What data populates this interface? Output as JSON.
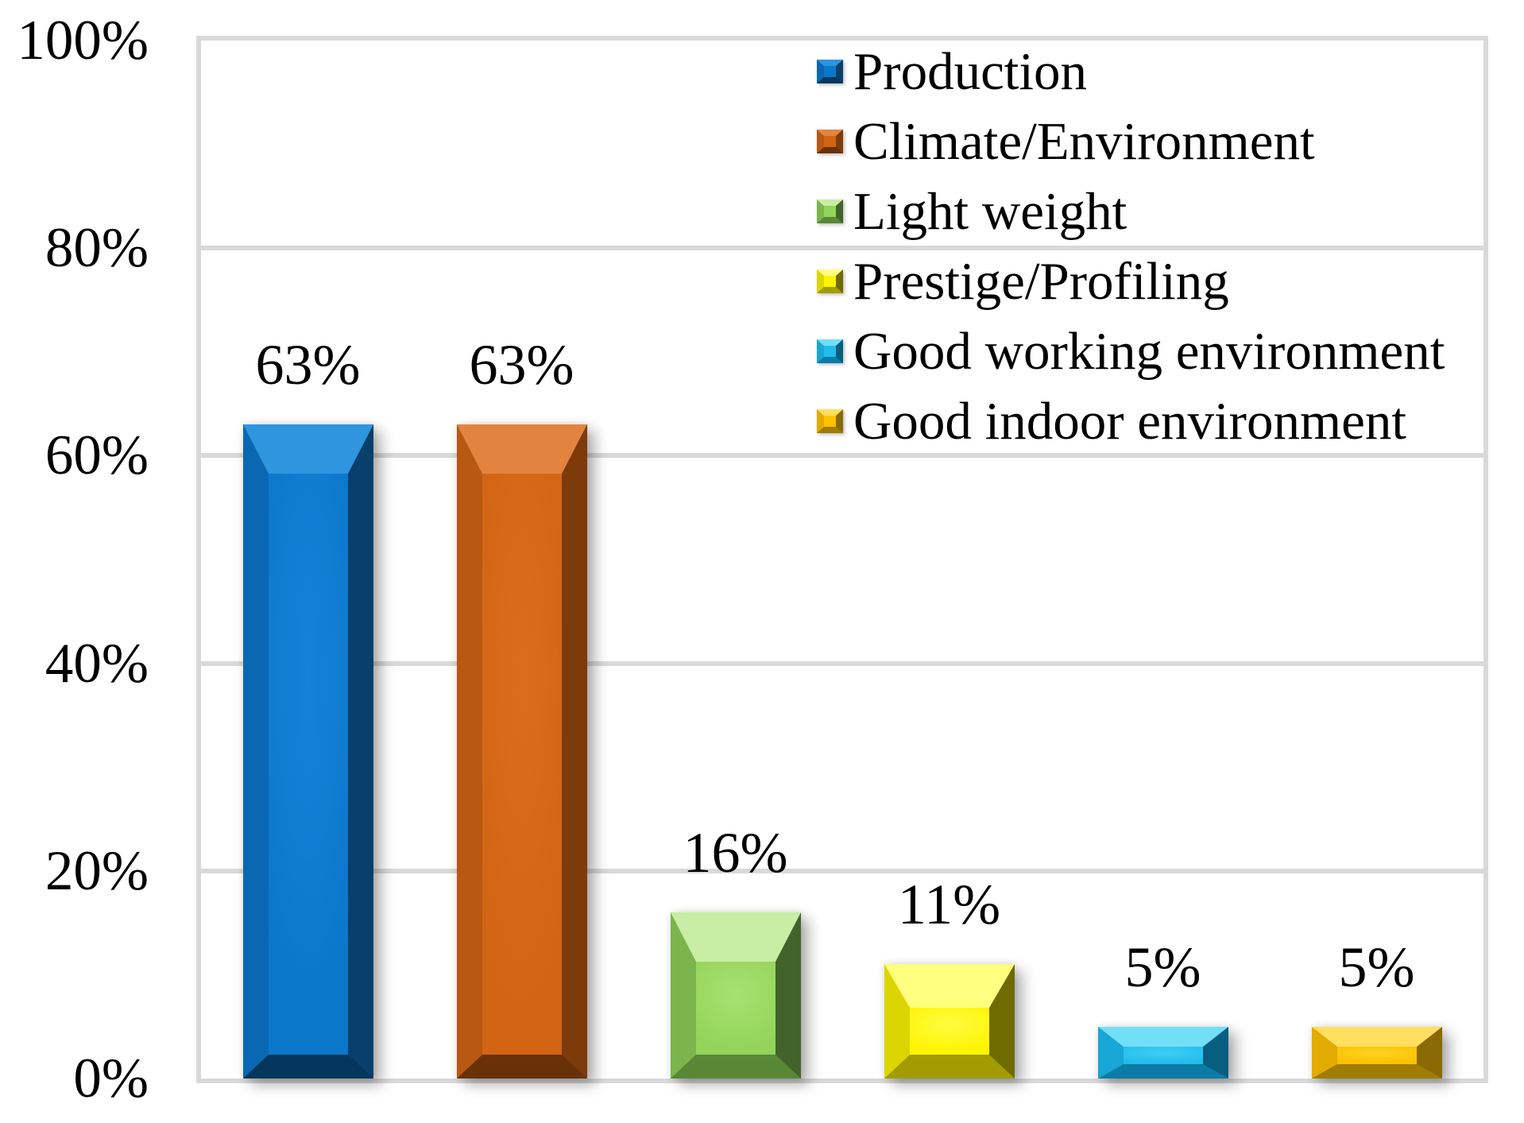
{
  "chart_data": {
    "type": "bar",
    "title": "",
    "xlabel": "",
    "ylabel": "",
    "categories": [
      "Production",
      "Climate/Environment",
      "Light weight",
      "Prestige/Profiling",
      "Good working environment",
      "Good indoor environment"
    ],
    "values": [
      63,
      63,
      16,
      11,
      5,
      5
    ],
    "data_labels": [
      "63%",
      "63%",
      "16%",
      "11%",
      "5%",
      "5%"
    ],
    "ylim": [
      0,
      100
    ],
    "yticks": [
      0,
      20,
      40,
      60,
      80,
      100
    ],
    "ytick_labels": [
      "0%",
      "20%",
      "40%",
      "60%",
      "80%",
      "100%"
    ],
    "grid": true,
    "legend_position": "top-right-inside",
    "bar_style": "3d-bevel",
    "series": [
      {
        "name": "Production",
        "value": 63,
        "label": "63%",
        "colors": {
          "face": "#0b77cb",
          "faceLight": "#1583d8",
          "bevelTop": "#2e95de",
          "bevelLeft": "#0a68b2",
          "bevelRight": "#083f6b",
          "bevelBottom": "#05365d"
        }
      },
      {
        "name": "Climate/Environment",
        "value": 63,
        "label": "63%",
        "colors": {
          "face": "#d26414",
          "faceLight": "#da6d1d",
          "bevelTop": "#e28440",
          "bevelLeft": "#b85812",
          "bevelRight": "#7d3b0b",
          "bevelBottom": "#693108"
        }
      },
      {
        "name": "Light weight",
        "value": 16,
        "label": "16%",
        "colors": {
          "face": "#94d45a",
          "faceLight": "#a6e170",
          "bevelTop": "#c8eda4",
          "bevelLeft": "#7bb54c",
          "bevelRight": "#42632a",
          "bevelBottom": "#588836"
        }
      },
      {
        "name": "Prestige/Profiling",
        "value": 11,
        "label": "11%",
        "colors": {
          "face": "#fdf502",
          "faceLight": "#fffb40",
          "bevelTop": "#ffff80",
          "bevelLeft": "#ddd502",
          "bevelRight": "#6f6b01",
          "bevelBottom": "#a29c02"
        }
      },
      {
        "name": "Good working environment",
        "value": 5,
        "label": "5%",
        "colors": {
          "face": "#22bceb",
          "faceLight": "#3ecdf4",
          "bevelTop": "#72dff8",
          "bevelLeft": "#18a6d6",
          "bevelRight": "#085e80",
          "bevelBottom": "#0c7ba8"
        }
      },
      {
        "name": "Good indoor environment",
        "value": 5,
        "label": "5%",
        "colors": {
          "face": "#fcc103",
          "faceLight": "#fdd21f",
          "bevelTop": "#ffdf60",
          "bevelLeft": "#e2ab02",
          "bevelRight": "#8a6a04",
          "bevelBottom": "#a07c03"
        }
      }
    ]
  },
  "colors": {
    "background": "#ffffff",
    "gridline": "#d9d9d9",
    "plot_border": "#d9d9d9",
    "text": "#000000"
  }
}
